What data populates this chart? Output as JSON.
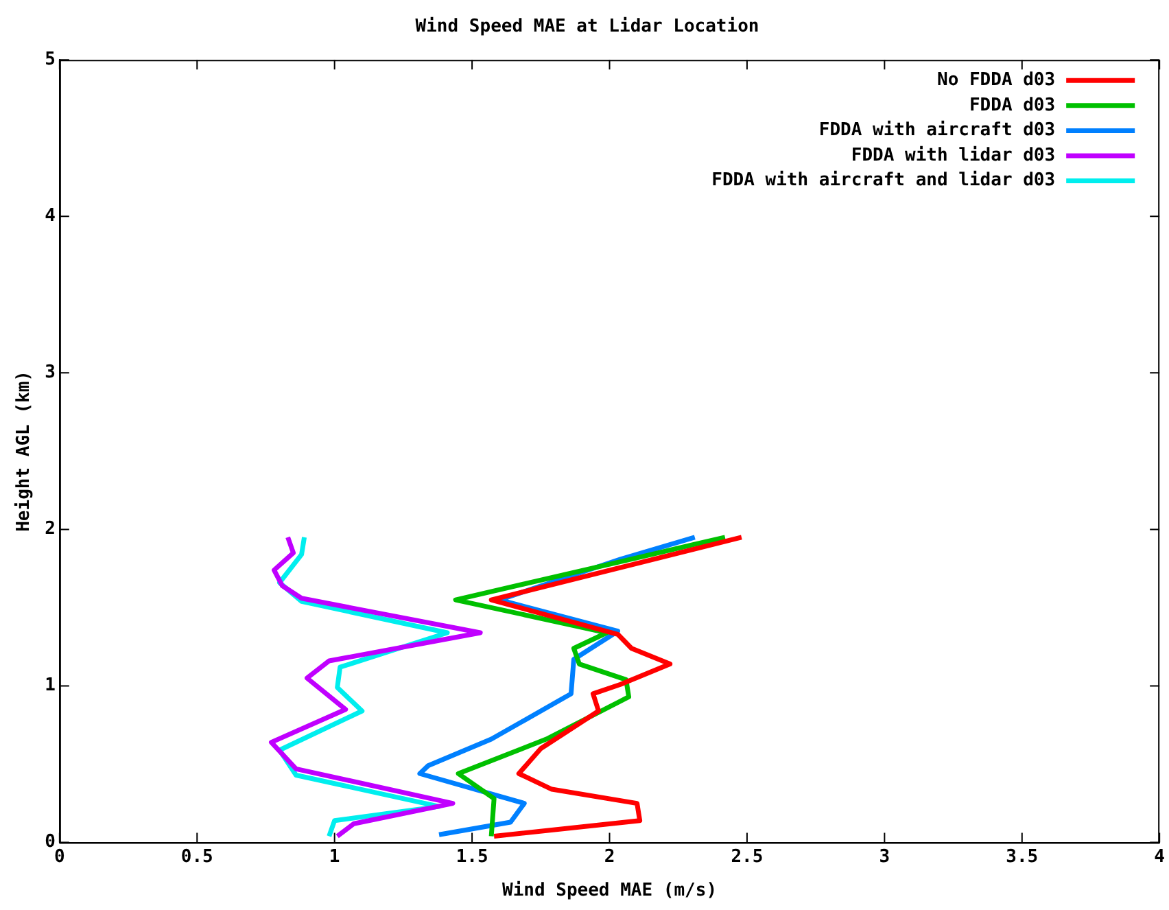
{
  "chart_data": {
    "type": "line",
    "title": "Wind Speed MAE at Lidar Location",
    "xlabel": "Wind Speed MAE (m/s)",
    "ylabel": "Height AGL (km)",
    "xlim": [
      0,
      4
    ],
    "xticks": [
      0,
      0.5,
      1,
      1.5,
      2,
      2.5,
      3,
      3.5,
      4
    ],
    "ylim": [
      0,
      5
    ],
    "yticks": [
      0,
      1,
      2,
      3,
      4,
      5
    ],
    "grid": false,
    "legend": "top right",
    "marker": "none",
    "line_style": "solid",
    "series": [
      {
        "name": "No FDDA d03",
        "color": "#ff0000",
        "x": [
          2.48,
          1.57,
          2.03,
          2.08,
          2.22,
          2.04,
          1.94,
          1.96,
          1.75,
          1.67,
          1.79,
          2.1,
          2.11,
          1.58
        ],
        "values": [
          1.95,
          1.55,
          1.33,
          1.24,
          1.14,
          1.01,
          0.95,
          0.84,
          0.6,
          0.44,
          0.34,
          0.25,
          0.14,
          0.04
        ]
      },
      {
        "name": "FDDA d03",
        "color": "#00c000",
        "x": [
          2.42,
          2.03,
          1.44,
          1.99,
          1.87,
          1.89,
          2.06,
          2.07,
          1.77,
          1.45,
          1.58,
          1.57
        ],
        "values": [
          1.95,
          1.79,
          1.55,
          1.34,
          1.24,
          1.14,
          1.04,
          0.93,
          0.66,
          0.44,
          0.28,
          0.04
        ]
      },
      {
        "name": "FDDA with aircraft d03",
        "color": "#0080ff",
        "x": [
          2.31,
          2.04,
          1.6,
          2.03,
          1.87,
          1.86,
          1.69,
          1.57,
          1.34,
          1.31,
          1.69,
          1.64,
          1.38
        ],
        "values": [
          1.95,
          1.81,
          1.55,
          1.35,
          1.17,
          0.95,
          0.78,
          0.66,
          0.49,
          0.44,
          0.25,
          0.13,
          0.05
        ]
      },
      {
        "name": "FDDA with lidar d03",
        "color": "#c000ff",
        "x": [
          0.83,
          0.85,
          0.78,
          0.81,
          0.88,
          1.53,
          0.98,
          0.9,
          1.04,
          0.77,
          0.86,
          1.43,
          1.07,
          1.01
        ],
        "values": [
          1.95,
          1.85,
          1.74,
          1.64,
          1.56,
          1.34,
          1.16,
          1.05,
          0.85,
          0.64,
          0.47,
          0.25,
          0.12,
          0.04
        ]
      },
      {
        "name": "FDDA with aircraft and lidar d03",
        "color": "#00eeee",
        "x": [
          0.89,
          0.88,
          0.8,
          0.88,
          1.41,
          1.02,
          1.01,
          1.1,
          0.8,
          0.86,
          1.38,
          1.0,
          0.98
        ],
        "values": [
          1.95,
          1.84,
          1.66,
          1.54,
          1.34,
          1.12,
          0.99,
          0.84,
          0.59,
          0.43,
          0.23,
          0.14,
          0.04
        ]
      }
    ]
  }
}
